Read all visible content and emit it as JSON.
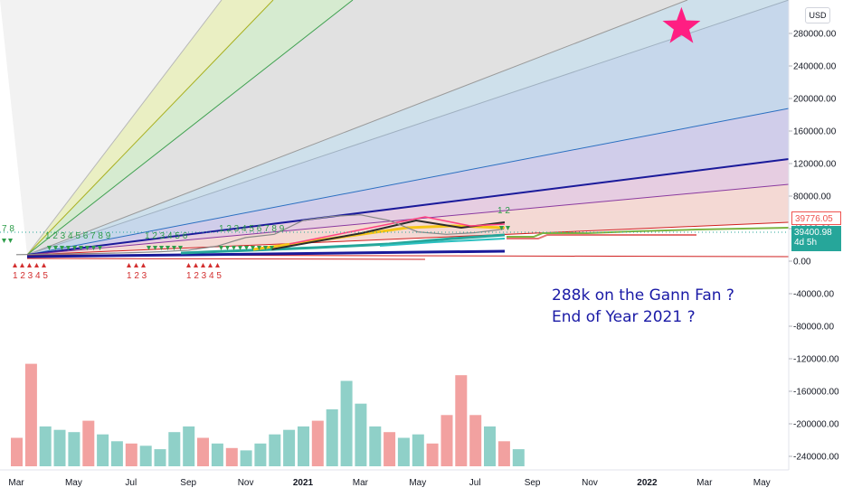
{
  "currency": "USD",
  "annotation": {
    "line1": "288k on the Gann Fan ?",
    "line2": "End of Year 2021 ?"
  },
  "price_labels": {
    "upper": "39776.05",
    "current": "39400.98",
    "countdown": "4d 5h"
  },
  "colors": {
    "up": "#26a69a",
    "down": "#ef5350",
    "star": "#ff1e82",
    "annotation_text": "#1a1aa6"
  },
  "markers": {
    "green_counts": [
      "7 8",
      "1 2 3 4 5 6 7 8 9",
      "1 2 3 4 5 6",
      "1 2 3 4 5 6 7 8 9",
      "1 2"
    ],
    "red_counts": [
      "1 2 3 4 5",
      "1 2 3",
      "1 2 3 4 5"
    ]
  },
  "chart_data": {
    "type": "line",
    "title": "",
    "xlabel": "",
    "ylabel": "",
    "x_ticks": [
      "Mar",
      "May",
      "Jul",
      "Sep",
      "Nov",
      "2021",
      "Mar",
      "May",
      "Jul",
      "Sep",
      "Nov",
      "2022",
      "Mar",
      "May"
    ],
    "y_ticks": [
      280000,
      240000,
      200000,
      160000,
      120000,
      80000,
      40000,
      0,
      -40000,
      -80000,
      -120000,
      -160000,
      -200000,
      -240000
    ],
    "y_tick_labels": [
      "280000.00",
      "240000.00",
      "200000.00",
      "160000.00",
      "120000.00",
      "80000.00",
      "40000.00",
      "0.00",
      "-40000.00",
      "-80000.00",
      "-120000.00",
      "-160000.00",
      "-200000.00",
      "-240000.00"
    ],
    "ylim": [
      -250000,
      320000
    ],
    "grid": false,
    "legend": "none",
    "price_line_month_index": [
      0,
      1,
      2,
      3,
      4,
      5,
      6,
      7,
      8,
      9,
      10,
      11,
      12,
      13,
      14,
      15,
      16,
      17
    ],
    "price_series": [
      8000,
      8500,
      9000,
      9500,
      10500,
      11500,
      13500,
      18500,
      29000,
      33000,
      50000,
      55000,
      57000,
      50000,
      36000,
      33000,
      35000,
      39400
    ],
    "star_target": {
      "month_index": 23.2,
      "price": 288000
    },
    "volume_month_index": [
      0,
      0.5,
      1,
      1.5,
      2,
      2.5,
      3,
      3.5,
      4,
      4.5,
      5,
      5.5,
      6,
      6.5,
      7,
      7.5,
      8,
      8.5,
      9,
      9.5,
      10,
      10.5,
      11,
      11.5,
      12,
      12.5,
      13,
      13.5,
      14,
      14.5,
      15,
      15.5,
      16,
      16.5,
      17,
      17.5
    ],
    "volume_relative": [
      0.25,
      0.9,
      0.35,
      0.32,
      0.3,
      0.4,
      0.28,
      0.22,
      0.2,
      0.18,
      0.15,
      0.3,
      0.35,
      0.25,
      0.2,
      0.16,
      0.14,
      0.2,
      0.28,
      0.32,
      0.35,
      0.4,
      0.5,
      0.75,
      0.55,
      0.35,
      0.3,
      0.25,
      0.28,
      0.2,
      0.45,
      0.8,
      0.45,
      0.35,
      0.22,
      0.15
    ],
    "volume_up": [
      false,
      false,
      true,
      true,
      true,
      false,
      true,
      true,
      false,
      true,
      true,
      true,
      true,
      false,
      true,
      false,
      true,
      true,
      true,
      true,
      true,
      false,
      true,
      true,
      true,
      true,
      false,
      true,
      true,
      false,
      false,
      false,
      false,
      true,
      false,
      true
    ]
  }
}
